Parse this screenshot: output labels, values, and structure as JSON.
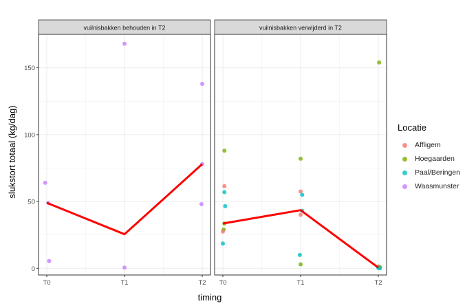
{
  "chart_data": {
    "type": "scatter",
    "ylabel": "slukstort totaal (kg/dag)",
    "xlabel": "timing",
    "categories": [
      "T0",
      "T1",
      "T2"
    ],
    "ylim": [
      -5,
      175
    ],
    "yticks": [
      0,
      50,
      100,
      150
    ],
    "legend_title": "Locatie",
    "legend_position": "right",
    "colors": {
      "Affligem": "#F8766D",
      "Hoegaarden": "#7CAE00",
      "Paal/Beringen": "#00BFC4",
      "Waasmunster": "#C77CFF",
      "line": "#FF0000"
    },
    "legend_entries": [
      "Affligem",
      "Hoegaarden",
      "Paal/Beringen",
      "Waasmunster"
    ],
    "panels": [
      {
        "title": "vuilnisbakken behouden in T2",
        "points": [
          {
            "location": "Waasmunster",
            "x": "T0",
            "dx": -0.02,
            "y": 64
          },
          {
            "location": "Waasmunster",
            "x": "T0",
            "dx": 0.02,
            "y": 49
          },
          {
            "location": "Waasmunster",
            "x": "T0",
            "dx": 0.03,
            "y": 5.5
          },
          {
            "location": "Waasmunster",
            "x": "T1",
            "dx": 0.0,
            "y": 168
          },
          {
            "location": "Waasmunster",
            "x": "T1",
            "dx": 0.0,
            "y": 0.5
          },
          {
            "location": "Waasmunster",
            "x": "T2",
            "dx": 0.0,
            "y": 138
          },
          {
            "location": "Waasmunster",
            "x": "T2",
            "dx": 0.0,
            "y": 78
          },
          {
            "location": "Waasmunster",
            "x": "T2",
            "dx": -0.01,
            "y": 48
          }
        ],
        "mean_line": [
          49,
          25.5,
          78
        ]
      },
      {
        "title": "vuilnisbakken verwijderd in T2",
        "points": [
          {
            "location": "Hoegaarden",
            "x": "T0",
            "dx": 0.02,
            "y": 88
          },
          {
            "location": "Affligem",
            "x": "T0",
            "dx": 0.02,
            "y": 61.5
          },
          {
            "location": "Paal/Beringen",
            "x": "T0",
            "dx": 0.02,
            "y": 57
          },
          {
            "location": "Paal/Beringen",
            "x": "T0",
            "dx": 0.03,
            "y": 46.5
          },
          {
            "location": "Hoegaarden",
            "x": "T0",
            "dx": 0.02,
            "y": 33.5
          },
          {
            "location": "Hoegaarden",
            "x": "T0",
            "dx": 0.01,
            "y": 29
          },
          {
            "location": "Affligem",
            "x": "T0",
            "dx": 0.0,
            "y": 27.5
          },
          {
            "location": "Paal/Beringen",
            "x": "T0",
            "dx": 0.0,
            "y": 18.5
          },
          {
            "location": "Hoegaarden",
            "x": "T1",
            "dx": 0.0,
            "y": 82
          },
          {
            "location": "Affligem",
            "x": "T1",
            "dx": 0.0,
            "y": 57.5
          },
          {
            "location": "Paal/Beringen",
            "x": "T1",
            "dx": 0.02,
            "y": 55
          },
          {
            "location": "Paal/Beringen",
            "x": "T1",
            "dx": 0.02,
            "y": 43
          },
          {
            "location": "Affligem",
            "x": "T1",
            "dx": 0.0,
            "y": 40
          },
          {
            "location": "Paal/Beringen",
            "x": "T1",
            "dx": -0.01,
            "y": 10
          },
          {
            "location": "Hoegaarden",
            "x": "T1",
            "dx": 0.0,
            "y": 3
          },
          {
            "location": "Hoegaarden",
            "x": "T2",
            "dx": 0.01,
            "y": 154
          },
          {
            "location": "Affligem",
            "x": "T2",
            "dx": 0.0,
            "y": 1.5
          },
          {
            "location": "Hoegaarden",
            "x": "T2",
            "dx": 0.02,
            "y": 1.0
          },
          {
            "location": "Paal/Beringen",
            "x": "T2",
            "dx": 0.0,
            "y": 0.3
          },
          {
            "location": "Paal/Beringen",
            "x": "T2",
            "dx": 0.02,
            "y": 0
          }
        ],
        "mean_line": [
          33.5,
          43.5,
          0.5
        ]
      }
    ]
  }
}
